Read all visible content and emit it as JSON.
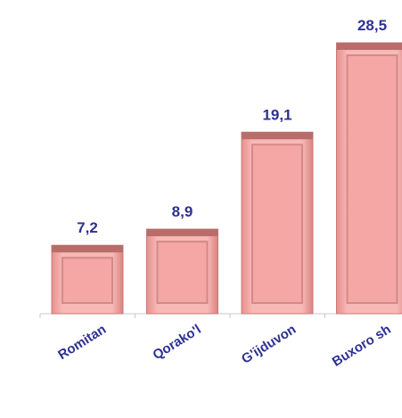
{
  "chart_data": {
    "type": "bar",
    "categories": [
      "Romitan",
      "Qorako'l",
      "G'ijduvon",
      "Buxoro sh"
    ],
    "values": [
      7.2,
      8.9,
      19.1,
      28.5
    ],
    "value_labels": [
      "7,2",
      "8,9",
      "19,1",
      "28,5"
    ],
    "color": "#f4a7a5"
  }
}
